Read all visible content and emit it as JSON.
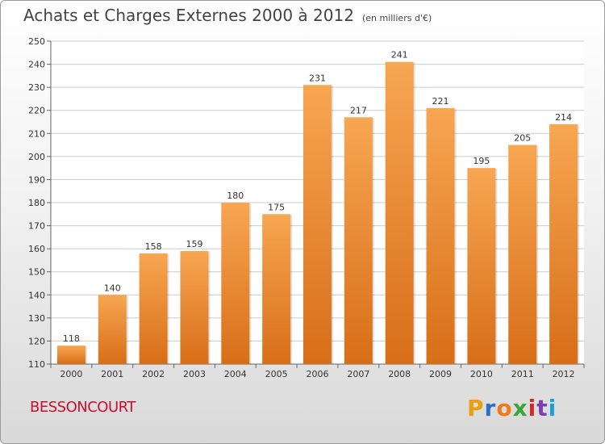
{
  "header": {
    "title": "Achats et Charges Externes 2000 à 2012",
    "unit": "(en milliers d'€)"
  },
  "footer": {
    "town": "BESSONCOURT",
    "logo": "Proxiti"
  },
  "colors": {
    "bar_light": "#f7a652",
    "bar_dark": "#d86e18",
    "town": "#c8102e",
    "grid": "#cccccc",
    "logo_letters": [
      "#e8a10e",
      "#2a6fc9",
      "#f07a1a",
      "#3aa63a",
      "#d9262c",
      "#7a3fb0",
      "#1a9fd6"
    ]
  },
  "chart_data": {
    "type": "bar",
    "categories": [
      "2000",
      "2001",
      "2002",
      "2003",
      "2004",
      "2005",
      "2006",
      "2007",
      "2008",
      "2009",
      "2010",
      "2011",
      "2012"
    ],
    "values": [
      118,
      140,
      158,
      159,
      180,
      175,
      231,
      217,
      241,
      221,
      195,
      205,
      214
    ],
    "ylim": [
      110,
      250
    ],
    "yticks": [
      110,
      120,
      130,
      140,
      150,
      160,
      170,
      180,
      190,
      200,
      210,
      220,
      230,
      240,
      250
    ],
    "grid": true,
    "data_labels": true
  }
}
